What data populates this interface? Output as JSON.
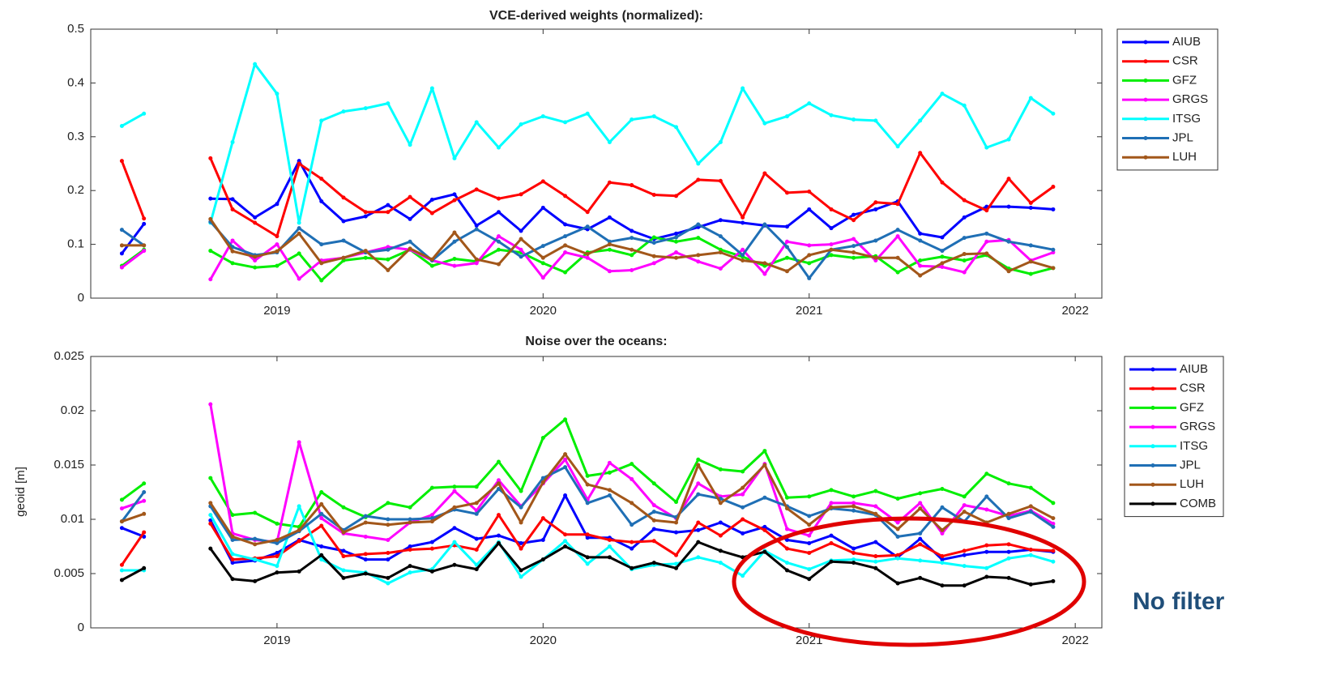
{
  "chart_data": [
    {
      "type": "line",
      "title": "VCE-derived weights (normalized):",
      "x": [
        2018.417,
        2018.5,
        2018.583,
        2018.667,
        2018.75,
        2018.833,
        2018.917,
        2019,
        2019.083,
        2019.167,
        2019.25,
        2019.333,
        2019.417,
        2019.5,
        2019.583,
        2019.667,
        2019.75,
        2019.833,
        2019.917,
        2020,
        2020.083,
        2020.167,
        2020.25,
        2020.333,
        2020.417,
        2020.5,
        2020.583,
        2020.667,
        2020.75,
        2020.833,
        2020.917,
        2021,
        2021.083,
        2021.167,
        2021.25,
        2021.333,
        2021.417,
        2021.5,
        2021.583,
        2021.667,
        2021.75,
        2021.833,
        2021.917
      ],
      "xlim": [
        2018.3,
        2022.1
      ],
      "xticks": [
        2019,
        2020,
        2021,
        2022
      ],
      "ylim": [
        0,
        0.5
      ],
      "yticks": [
        0,
        0.1,
        0.2,
        0.3,
        0.4,
        0.5
      ],
      "grid": false,
      "legend": "outside-right",
      "series": [
        {
          "name": "AIUB",
          "color": "#0000ff",
          "values": [
            0.083,
            0.138,
            null,
            null,
            0.185,
            0.184,
            0.15,
            0.175,
            0.255,
            0.18,
            0.143,
            0.152,
            0.173,
            0.147,
            0.183,
            0.193,
            0.135,
            0.16,
            0.125,
            0.168,
            0.137,
            0.128,
            0.15,
            0.125,
            0.11,
            0.12,
            0.132,
            0.145,
            0.14,
            0.135,
            0.133,
            0.165,
            0.13,
            0.155,
            0.165,
            0.18,
            0.12,
            0.113,
            0.15,
            0.17,
            0.17,
            0.168,
            0.165
          ]
        },
        {
          "name": "CSR",
          "color": "#ff0000",
          "values": [
            0.255,
            0.148,
            null,
            null,
            0.26,
            0.165,
            0.14,
            0.115,
            0.25,
            0.222,
            0.187,
            0.16,
            0.16,
            0.188,
            0.158,
            0.182,
            0.202,
            0.185,
            0.193,
            0.217,
            0.19,
            0.16,
            0.215,
            0.21,
            0.192,
            0.19,
            0.22,
            0.218,
            0.15,
            0.232,
            0.196,
            0.198,
            0.165,
            0.145,
            0.178,
            0.175,
            0.27,
            0.215,
            0.182,
            0.163,
            0.222,
            0.177,
            0.207
          ]
        },
        {
          "name": "GFZ",
          "color": "#00ee00",
          "values": [
            0.06,
            0.09,
            null,
            null,
            0.088,
            0.065,
            0.057,
            0.06,
            0.083,
            0.033,
            0.07,
            0.075,
            0.072,
            0.09,
            0.06,
            0.073,
            0.068,
            0.09,
            0.085,
            0.065,
            0.048,
            0.085,
            0.09,
            0.08,
            0.113,
            0.105,
            0.112,
            0.09,
            0.077,
            0.06,
            0.075,
            0.065,
            0.08,
            0.075,
            0.078,
            0.048,
            0.07,
            0.077,
            0.07,
            0.08,
            0.055,
            0.045,
            0.056
          ]
        },
        {
          "name": "GRGS",
          "color": "#ff00ff",
          "values": [
            0.057,
            0.088,
            null,
            null,
            0.035,
            0.107,
            0.07,
            0.1,
            0.036,
            0.07,
            0.075,
            0.085,
            0.095,
            0.09,
            0.07,
            0.06,
            0.065,
            0.115,
            0.09,
            0.038,
            0.085,
            0.075,
            0.05,
            0.052,
            0.065,
            0.085,
            0.068,
            0.055,
            0.09,
            0.045,
            0.105,
            0.098,
            0.1,
            0.11,
            0.07,
            0.115,
            0.06,
            0.058,
            0.048,
            0.105,
            0.108,
            0.07,
            0.085
          ]
        },
        {
          "name": "ITSG",
          "color": "#00ffff",
          "values": [
            0.32,
            0.343,
            null,
            null,
            0.14,
            0.29,
            0.435,
            0.38,
            0.14,
            0.33,
            0.347,
            0.353,
            0.362,
            0.285,
            0.39,
            0.26,
            0.327,
            0.28,
            0.323,
            0.338,
            0.327,
            0.343,
            0.29,
            0.332,
            0.338,
            0.318,
            0.25,
            0.29,
            0.39,
            0.325,
            0.338,
            0.362,
            0.34,
            0.332,
            0.33,
            0.282,
            0.33,
            0.38,
            0.358,
            0.28,
            0.295,
            0.372,
            0.343
          ]
        },
        {
          "name": "JPL",
          "color": "#1f6fb5",
          "values": [
            0.127,
            0.098,
            null,
            null,
            0.142,
            0.095,
            0.08,
            0.085,
            0.13,
            0.1,
            0.107,
            0.085,
            0.09,
            0.105,
            0.07,
            0.105,
            0.128,
            0.105,
            0.077,
            0.097,
            0.115,
            0.133,
            0.105,
            0.112,
            0.103,
            0.113,
            0.137,
            0.115,
            0.08,
            0.137,
            0.095,
            0.037,
            0.09,
            0.097,
            0.107,
            0.127,
            0.107,
            0.088,
            0.112,
            0.12,
            0.105,
            0.098,
            0.09
          ]
        },
        {
          "name": "LUH",
          "color": "#a2571a",
          "values": [
            0.098,
            0.098,
            null,
            null,
            0.147,
            0.087,
            0.077,
            0.087,
            0.12,
            0.065,
            0.075,
            0.088,
            0.052,
            0.092,
            0.072,
            0.122,
            0.072,
            0.063,
            0.11,
            0.075,
            0.098,
            0.082,
            0.1,
            0.09,
            0.078,
            0.075,
            0.08,
            0.085,
            0.07,
            0.065,
            0.05,
            0.08,
            0.09,
            0.085,
            0.075,
            0.075,
            0.042,
            0.065,
            0.082,
            0.083,
            0.05,
            0.068,
            0.056
          ]
        }
      ]
    },
    {
      "type": "line",
      "title": "Noise over the oceans:",
      "ylabel": "geoid [m]",
      "annotation": "No filter",
      "x": [
        2018.417,
        2018.5,
        2018.583,
        2018.667,
        2018.75,
        2018.833,
        2018.917,
        2019,
        2019.083,
        2019.167,
        2019.25,
        2019.333,
        2019.417,
        2019.5,
        2019.583,
        2019.667,
        2019.75,
        2019.833,
        2019.917,
        2020,
        2020.083,
        2020.167,
        2020.25,
        2020.333,
        2020.417,
        2020.5,
        2020.583,
        2020.667,
        2020.75,
        2020.833,
        2020.917,
        2021,
        2021.083,
        2021.167,
        2021.25,
        2021.333,
        2021.417,
        2021.5,
        2021.583,
        2021.667,
        2021.75,
        2021.833,
        2021.917
      ],
      "xlim": [
        2018.3,
        2022.1
      ],
      "xticks": [
        2019,
        2020,
        2021,
        2022
      ],
      "ylim": [
        0,
        0.025
      ],
      "yticks": [
        0,
        0.005,
        0.01,
        0.015,
        0.02,
        0.025
      ],
      "grid": false,
      "legend": "outside-right",
      "series": [
        {
          "name": "AIUB",
          "color": "#0000ff",
          "values": [
            0.0092,
            0.0084,
            null,
            null,
            0.0099,
            0.006,
            0.0062,
            0.0069,
            0.0081,
            0.0075,
            0.0071,
            0.0063,
            0.0063,
            0.0075,
            0.0079,
            0.0092,
            0.0082,
            0.0085,
            0.0078,
            0.0081,
            0.0122,
            0.0083,
            0.0083,
            0.0073,
            0.0091,
            0.0088,
            0.009,
            0.0097,
            0.0087,
            0.0093,
            0.0081,
            0.0078,
            0.0085,
            0.0073,
            0.0079,
            0.0065,
            0.0082,
            0.0063,
            0.0067,
            0.007,
            0.007,
            0.0072,
            0.007
          ]
        },
        {
          "name": "CSR",
          "color": "#ff0000",
          "values": [
            0.0058,
            0.0088,
            null,
            null,
            0.0096,
            0.0063,
            0.0064,
            0.0066,
            0.008,
            0.0094,
            0.0066,
            0.0068,
            0.0069,
            0.0072,
            0.0073,
            0.0076,
            0.0072,
            0.0104,
            0.0073,
            0.0101,
            0.0086,
            0.0086,
            0.0081,
            0.0079,
            0.008,
            0.0067,
            0.0097,
            0.0085,
            0.01,
            0.009,
            0.0073,
            0.0069,
            0.0078,
            0.0069,
            0.0066,
            0.0067,
            0.0077,
            0.0066,
            0.0071,
            0.0076,
            0.0077,
            0.0072,
            0.0071
          ]
        },
        {
          "name": "GFZ",
          "color": "#00ee00",
          "values": [
            0.0118,
            0.0133,
            null,
            null,
            0.0138,
            0.0104,
            0.0106,
            0.0096,
            0.0093,
            0.0125,
            0.0111,
            0.0102,
            0.0115,
            0.0111,
            0.0129,
            0.013,
            0.013,
            0.0153,
            0.0126,
            0.0175,
            0.0192,
            0.014,
            0.0143,
            0.0151,
            0.0133,
            0.0116,
            0.0155,
            0.0146,
            0.0144,
            0.0163,
            0.012,
            0.0121,
            0.0127,
            0.0121,
            0.0126,
            0.0119,
            0.0124,
            0.0128,
            0.0121,
            0.0142,
            0.0133,
            0.0129,
            0.0115
          ]
        },
        {
          "name": "GRGS",
          "color": "#ff00ff",
          "values": [
            0.011,
            0.0117,
            null,
            null,
            0.0206,
            0.0087,
            0.0081,
            0.0079,
            0.0171,
            0.0101,
            0.0087,
            0.0084,
            0.0081,
            0.0097,
            0.0104,
            0.0126,
            0.0108,
            0.0136,
            0.0112,
            0.0133,
            0.0155,
            0.0118,
            0.0152,
            0.0137,
            0.0113,
            0.0101,
            0.0133,
            0.0121,
            0.0123,
            0.0151,
            0.0091,
            0.0085,
            0.0115,
            0.0115,
            0.0112,
            0.0097,
            0.0115,
            0.0087,
            0.0113,
            0.0109,
            0.0103,
            0.0108,
            0.0096
          ]
        },
        {
          "name": "ITSG",
          "color": "#00ffff",
          "values": [
            0.0053,
            0.0053,
            null,
            null,
            0.0104,
            0.0068,
            0.0063,
            0.0057,
            0.0112,
            0.0063,
            0.0053,
            0.0051,
            0.0041,
            0.0051,
            0.0054,
            0.0079,
            0.0058,
            0.0079,
            0.0047,
            0.0063,
            0.008,
            0.0059,
            0.0075,
            0.0054,
            0.0058,
            0.0059,
            0.0065,
            0.006,
            0.0048,
            0.0071,
            0.006,
            0.0054,
            0.0062,
            0.0063,
            0.0061,
            0.0064,
            0.0062,
            0.006,
            0.0057,
            0.0055,
            0.0064,
            0.0067,
            0.0061
          ]
        },
        {
          "name": "JPL",
          "color": "#1f6fb5",
          "values": [
            0.0098,
            0.0125,
            null,
            null,
            0.0112,
            0.0081,
            0.0082,
            0.0078,
            0.0089,
            0.0105,
            0.009,
            0.0103,
            0.01,
            0.01,
            0.0101,
            0.0109,
            0.0105,
            0.0128,
            0.0111,
            0.0138,
            0.0148,
            0.0115,
            0.0122,
            0.0095,
            0.0107,
            0.0102,
            0.0123,
            0.0119,
            0.0111,
            0.012,
            0.0112,
            0.0103,
            0.011,
            0.0108,
            0.0104,
            0.0084,
            0.0087,
            0.0111,
            0.0098,
            0.0121,
            0.0101,
            0.0107,
            0.0093
          ]
        },
        {
          "name": "LUH",
          "color": "#a2571a",
          "values": [
            0.0098,
            0.0105,
            null,
            null,
            0.0115,
            0.0084,
            0.0077,
            0.0081,
            0.009,
            0.0114,
            0.0088,
            0.0097,
            0.0095,
            0.0097,
            0.0098,
            0.0111,
            0.0115,
            0.0133,
            0.0097,
            0.0134,
            0.016,
            0.0132,
            0.0127,
            0.0115,
            0.0099,
            0.0097,
            0.015,
            0.0115,
            0.0129,
            0.015,
            0.011,
            0.0095,
            0.0111,
            0.0112,
            0.0105,
            0.0091,
            0.011,
            0.009,
            0.0107,
            0.0097,
            0.0105,
            0.0112,
            0.0101
          ]
        },
        {
          "name": "COMB",
          "color": "#000000",
          "values": [
            0.0044,
            0.0055,
            null,
            null,
            0.0073,
            0.0045,
            0.0043,
            0.0051,
            0.0052,
            0.0067,
            0.0046,
            0.005,
            0.0046,
            0.0057,
            0.0052,
            0.0058,
            0.0054,
            0.0078,
            0.0053,
            0.0063,
            0.0075,
            0.0065,
            0.0065,
            0.0055,
            0.006,
            0.0055,
            0.0079,
            0.0071,
            0.0065,
            0.007,
            0.0053,
            0.0045,
            0.0061,
            0.006,
            0.0055,
            0.0041,
            0.0046,
            0.0039,
            0.0039,
            0.0047,
            0.0046,
            0.004,
            0.0043
          ]
        }
      ]
    }
  ]
}
